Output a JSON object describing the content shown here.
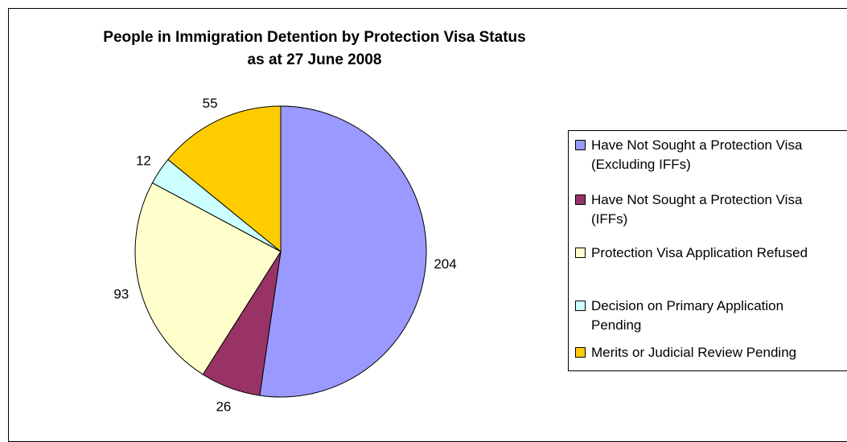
{
  "chart_data": {
    "type": "pie",
    "title": "People in Immigration Detention by Protection Visa Status",
    "subtitle": "as at 27 June 2008",
    "slices": [
      {
        "label": "Have Not Sought a Protection Visa (Excluding IFFs)",
        "value": 204,
        "color": "#9999FF"
      },
      {
        "label": "Have Not Sought a Protection Visa (IFFs)",
        "value": 26,
        "color": "#993366"
      },
      {
        "label": "Protection Visa Application Refused",
        "value": 93,
        "color": "#FFFFCC"
      },
      {
        "label": "Decision on Primary Application Pending",
        "value": 12,
        "color": "#CCFFFF"
      },
      {
        "label": "Merits or Judicial Review Pending",
        "value": 55,
        "color": "#FFCC00"
      }
    ],
    "start_angle_deg": 0,
    "direction": "clockwise",
    "legend_position": "right",
    "show_data_labels": true
  }
}
